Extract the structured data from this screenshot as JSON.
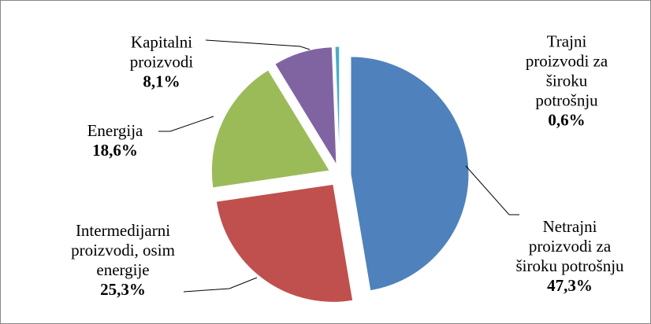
{
  "chart_data": {
    "type": "pie",
    "categories": [
      "Netrajni proizvodi za široku potrošnju",
      "Intermedijarni proizvodi, osim energije",
      "Energija",
      "Kapitalni proizvodi",
      "Trajni proizvodi za široku potrošnju"
    ],
    "values": [
      47.3,
      25.3,
      18.6,
      8.1,
      0.6
    ],
    "value_labels": [
      "47,3%",
      "25,3%",
      "18,6%",
      "8,1%",
      "0,6%"
    ],
    "colors": [
      "#4f81bd",
      "#c0504d",
      "#9bbb59",
      "#8064a2",
      "#4bacc6"
    ]
  }
}
